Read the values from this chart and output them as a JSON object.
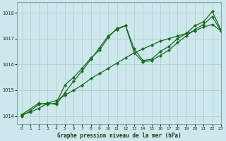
{
  "title": "Graphe pression niveau de la mer (hPa)",
  "bg_color": "#cce8ec",
  "line_color": "#1a6b1a",
  "grid_color": "#b0c8c8",
  "xlim": [
    -0.5,
    23
  ],
  "ylim": [
    1013.7,
    1018.4
  ],
  "yticks": [
    1014,
    1015,
    1016,
    1017,
    1018
  ],
  "xticks": [
    0,
    1,
    2,
    3,
    4,
    5,
    6,
    7,
    8,
    9,
    10,
    11,
    12,
    13,
    14,
    15,
    16,
    17,
    18,
    19,
    20,
    21,
    22,
    23
  ],
  "series1": {
    "x": [
      0,
      1,
      2,
      3,
      4,
      5,
      6,
      7,
      8,
      9,
      10,
      11,
      12,
      13,
      14,
      15,
      16,
      17,
      18,
      19,
      20,
      21,
      22,
      23
    ],
    "y": [
      1014.0,
      1014.2,
      1014.45,
      1014.5,
      1014.45,
      1014.9,
      1015.35,
      1015.75,
      1016.2,
      1016.65,
      1017.1,
      1017.35,
      1017.5,
      1016.45,
      1016.1,
      1016.15,
      1016.35,
      1016.55,
      1016.85,
      1017.1,
      1017.35,
      1017.55,
      1017.85,
      1017.3
    ]
  },
  "series2": {
    "x": [
      0,
      1,
      2,
      3,
      4,
      5,
      6,
      7,
      8,
      9,
      10,
      11,
      12,
      13,
      14,
      15,
      16,
      17,
      18,
      19,
      20,
      21,
      22,
      23
    ],
    "y": [
      1014.05,
      1014.15,
      1014.3,
      1014.5,
      1014.6,
      1014.8,
      1015.0,
      1015.2,
      1015.45,
      1015.65,
      1015.85,
      1016.05,
      1016.25,
      1016.45,
      1016.6,
      1016.75,
      1016.9,
      1017.0,
      1017.1,
      1017.2,
      1017.3,
      1017.45,
      1017.55,
      1017.3
    ]
  },
  "series3": {
    "x": [
      0,
      2,
      3,
      4,
      5,
      6,
      7,
      8,
      9,
      10,
      11,
      12,
      13,
      14,
      15,
      16,
      17,
      18,
      19,
      20,
      21,
      22,
      23
    ],
    "y": [
      1014.05,
      1014.5,
      1014.45,
      1014.5,
      1015.2,
      1015.5,
      1015.85,
      1016.25,
      1016.55,
      1017.05,
      1017.4,
      1017.5,
      1016.6,
      1016.15,
      1016.2,
      1016.5,
      1016.7,
      1017.0,
      1017.2,
      1017.5,
      1017.65,
      1018.05,
      1017.35
    ]
  }
}
